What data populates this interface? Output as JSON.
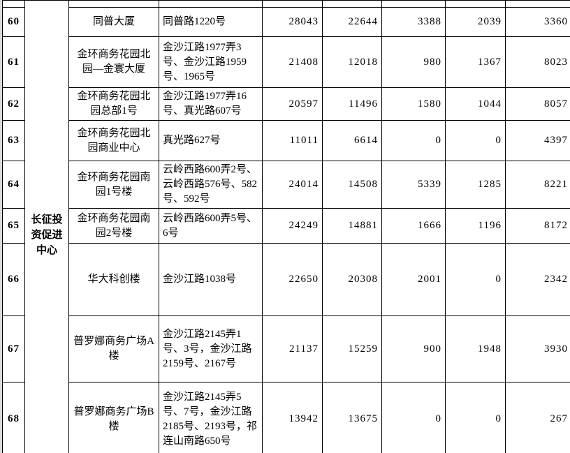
{
  "document": {
    "type": "scanned-table-page",
    "colors": {
      "page_margin": "#d9d9d9",
      "cell_background": "#ffffff",
      "grid_line": "#000000",
      "text": "#000000"
    }
  },
  "merged_group": {
    "label": "长征投资促进中心"
  },
  "table": {
    "rows": [
      {
        "no": "60",
        "name": "同普大厦",
        "address": "同普路1220号",
        "values": [
          "28043",
          "22644",
          "3388",
          "2039",
          "3360"
        ]
      },
      {
        "no": "61",
        "name": "金环商务花园北园—金寰大厦",
        "address": "金沙江路1977弄3号、金沙江路1959号、1965号",
        "values": [
          "21408",
          "12018",
          "980",
          "1367",
          "8023"
        ]
      },
      {
        "no": "62",
        "name": "金环商务花园北园总部1号",
        "address": "金沙江路1977弄16号、真光路607号",
        "values": [
          "20597",
          "11496",
          "1580",
          "1044",
          "8057"
        ]
      },
      {
        "no": "63",
        "name": "金环商务花园北园商业中心",
        "address": "真光路627号",
        "values": [
          "11011",
          "6614",
          "0",
          "0",
          "4397"
        ]
      },
      {
        "no": "64",
        "name": "金环商务花园南园1号楼",
        "address": "云岭西路600弄2号、云岭西路576号、582号、592号",
        "values": [
          "24014",
          "14508",
          "5339",
          "1285",
          "8221"
        ]
      },
      {
        "no": "65",
        "name": "金环商务花园南园2号楼",
        "address": "云岭西路600弄5号、6号",
        "values": [
          "24249",
          "14881",
          "1666",
          "1196",
          "8172"
        ]
      },
      {
        "no": "66",
        "name": "华大科创楼",
        "address": "金沙江路1038号",
        "values": [
          "22650",
          "20308",
          "2001",
          "0",
          "2342"
        ]
      },
      {
        "no": "67",
        "name": "普罗娜商务广场A楼",
        "address": "金沙江路2145弄1号、3号，金沙江路2159号、2167号",
        "values": [
          "21137",
          "15259",
          "900",
          "1948",
          "3930"
        ]
      },
      {
        "no": "68",
        "name": "普罗娜商务广场B楼",
        "address": "金沙江路2145弄5号、7号，金沙江路2185号、2193号，祁连山南路650号",
        "values": [
          "13942",
          "13675",
          "0",
          "0",
          "267"
        ]
      }
    ]
  }
}
